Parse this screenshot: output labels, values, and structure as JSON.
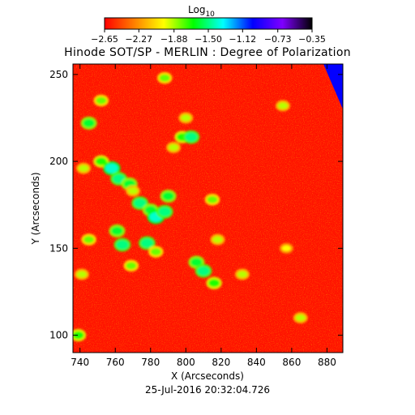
{
  "chart_data": {
    "type": "heatmap",
    "title": "Hinode SOT/SP - MERLIN : Degree of Polarization",
    "xlabel": "X (Arcseconds)",
    "ylabel": "Y (Arcseconds)",
    "xlim": [
      736,
      889
    ],
    "ylim": [
      90,
      256
    ],
    "x_ticks": [
      "740",
      "760",
      "780",
      "800",
      "820",
      "840",
      "860",
      "880"
    ],
    "x_tick_values": [
      740,
      760,
      780,
      800,
      820,
      840,
      860,
      880
    ],
    "y_ticks": [
      "100",
      "150",
      "200",
      "250"
    ],
    "y_tick_values": [
      100,
      150,
      200,
      250
    ],
    "colorbar": {
      "title": "Log",
      "title_sub": "10",
      "ticks": [
        "−2.65",
        "−2.27",
        "−1.88",
        "−1.50",
        "−1.12",
        "−0.73",
        "−0.35"
      ],
      "tick_values": [
        -2.65,
        -2.27,
        -1.88,
        -1.5,
        -1.12,
        -0.73,
        -0.35
      ],
      "range": [
        -2.65,
        -0.35
      ],
      "colors": [
        "#ff0000",
        "#ff7f00",
        "#ffff00",
        "#00ff00",
        "#00ffff",
        "#0000ff",
        "#7f00ff",
        "#000000"
      ]
    },
    "background_value": -2.6,
    "patches": [
      {
        "x": 752,
        "y": 200,
        "value": -1.7
      },
      {
        "x": 758,
        "y": 196,
        "value": -1.4
      },
      {
        "x": 762,
        "y": 190,
        "value": -1.5
      },
      {
        "x": 768,
        "y": 187,
        "value": -1.6
      },
      {
        "x": 770,
        "y": 183,
        "value": -1.9
      },
      {
        "x": 774,
        "y": 176,
        "value": -1.5
      },
      {
        "x": 780,
        "y": 172,
        "value": -1.6
      },
      {
        "x": 783,
        "y": 168,
        "value": -1.4
      },
      {
        "x": 788,
        "y": 171,
        "value": -1.5
      },
      {
        "x": 761,
        "y": 160,
        "value": -1.6
      },
      {
        "x": 764,
        "y": 152,
        "value": -1.5
      },
      {
        "x": 769,
        "y": 140,
        "value": -1.8
      },
      {
        "x": 778,
        "y": 153,
        "value": -1.5
      },
      {
        "x": 783,
        "y": 148,
        "value": -1.8
      },
      {
        "x": 790,
        "y": 180,
        "value": -1.6
      },
      {
        "x": 793,
        "y": 208,
        "value": -1.9
      },
      {
        "x": 798,
        "y": 214,
        "value": -1.7
      },
      {
        "x": 803,
        "y": 214,
        "value": -1.5
      },
      {
        "x": 800,
        "y": 225,
        "value": -1.9
      },
      {
        "x": 788,
        "y": 248,
        "value": -1.8
      },
      {
        "x": 806,
        "y": 142,
        "value": -1.6
      },
      {
        "x": 810,
        "y": 137,
        "value": -1.5
      },
      {
        "x": 816,
        "y": 130,
        "value": -1.7
      },
      {
        "x": 815,
        "y": 178,
        "value": -1.8
      },
      {
        "x": 818,
        "y": 155,
        "value": -1.9
      },
      {
        "x": 752,
        "y": 235,
        "value": -1.8
      },
      {
        "x": 745,
        "y": 222,
        "value": -1.6
      },
      {
        "x": 742,
        "y": 196,
        "value": -1.9
      },
      {
        "x": 745,
        "y": 155,
        "value": -1.8
      },
      {
        "x": 741,
        "y": 135,
        "value": -1.9
      },
      {
        "x": 739,
        "y": 100,
        "value": -1.7
      },
      {
        "x": 832,
        "y": 135,
        "value": -1.9
      },
      {
        "x": 855,
        "y": 232,
        "value": -1.9
      },
      {
        "x": 857,
        "y": 150,
        "value": -2.0
      },
      {
        "x": 865,
        "y": 110,
        "value": -1.9
      }
    ],
    "corner_region": {
      "x": [
        878,
        889
      ],
      "y": [
        230,
        256
      ],
      "value": -1.0
    }
  },
  "footer": {
    "timestamp": "25-Jul-2016 20:32:04.726"
  }
}
